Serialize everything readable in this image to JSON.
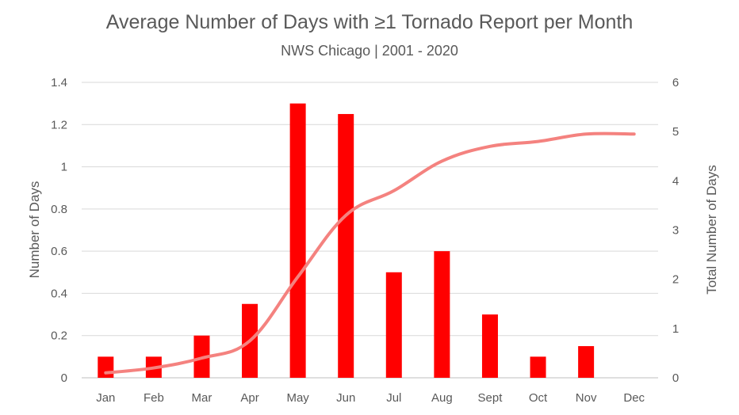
{
  "chart_data": {
    "type": "bar",
    "title": "Average Number of Days with ≥1 Tornado Report per Month",
    "subtitle": "NWS Chicago | 2001 - 2020",
    "categories": [
      "Jan",
      "Feb",
      "Mar",
      "Apr",
      "May",
      "Jun",
      "Jul",
      "Aug",
      "Sept",
      "Oct",
      "Nov",
      "Dec"
    ],
    "series": [
      {
        "type": "bar",
        "axis": "left",
        "color": "#ff0000",
        "values": [
          0.1,
          0.1,
          0.2,
          0.35,
          1.3,
          1.25,
          0.5,
          0.6,
          0.3,
          0.1,
          0.15,
          0
        ]
      },
      {
        "type": "line",
        "axis": "right",
        "color": "#f4827f",
        "values": [
          0.1,
          0.2,
          0.4,
          0.75,
          2.05,
          3.3,
          3.8,
          4.4,
          4.7,
          4.8,
          4.95,
          4.95
        ]
      }
    ],
    "y_left": {
      "label": "Number of Days",
      "ylim": [
        0,
        1.4
      ],
      "ticks": [
        "0",
        "0.2",
        "0.4",
        "0.6",
        "0.8",
        "1",
        "1.2",
        "1.4"
      ]
    },
    "y_right": {
      "label": "Total Number of Days",
      "ylim": [
        0,
        6
      ],
      "ticks": [
        "0",
        "1",
        "2",
        "3",
        "4",
        "5",
        "6"
      ]
    },
    "grid": true,
    "legend": "none"
  }
}
